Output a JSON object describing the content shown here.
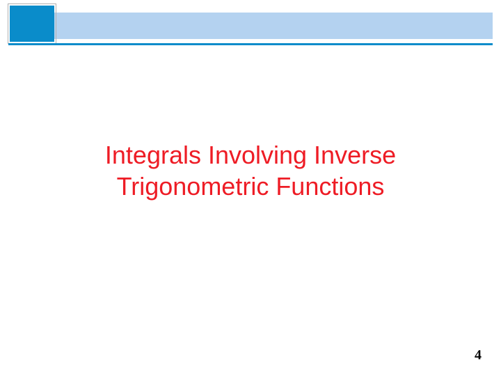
{
  "header": {
    "bar_color": "#b4d2f0",
    "accent_box_color": "#0a8cca",
    "underline_color": "#0a8cca"
  },
  "title": {
    "line1": "Integrals Involving Inverse",
    "line2": "Trigonometric Functions",
    "color": "#ee1c25",
    "fontsize": 36
  },
  "page_number": "4",
  "background_color": "#ffffff"
}
